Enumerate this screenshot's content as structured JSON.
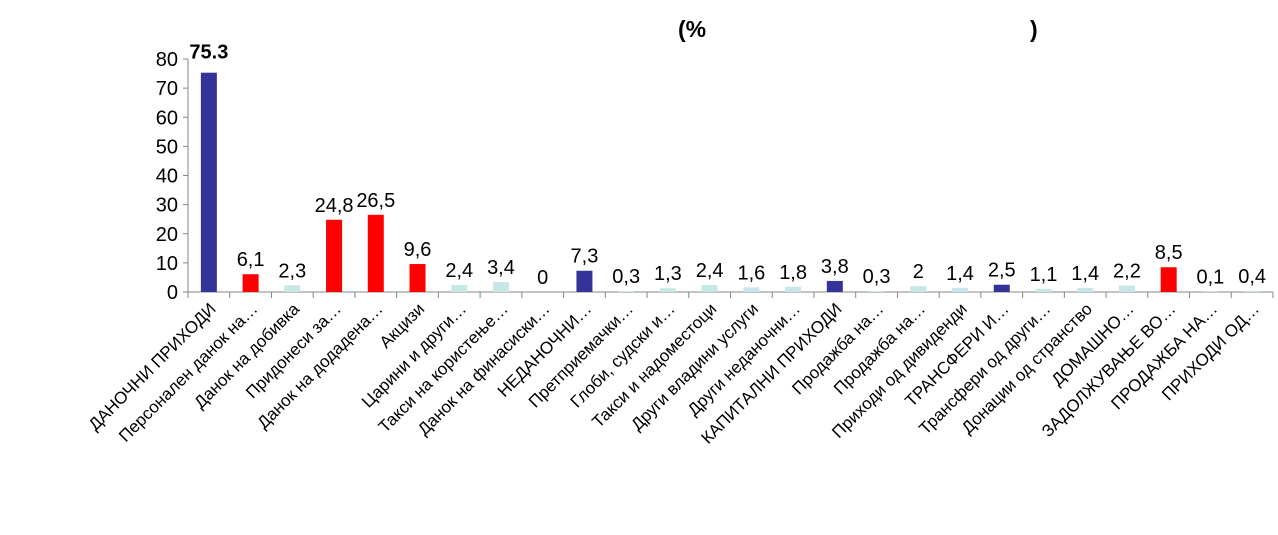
{
  "chart_data": {
    "type": "bar",
    "title_parts": [
      "(%",
      ")"
    ],
    "xlabel": "",
    "ylabel": "",
    "ylim": [
      0,
      80
    ],
    "yticks": [
      "0",
      "10",
      "20",
      "30",
      "40",
      "50",
      "60",
      "70",
      "80"
    ],
    "categories": [
      "ДАНОЧНИ ПРИХОДИ",
      "Персонален данок на…",
      "Данок на добивка",
      "Придонеси за…",
      "Данок на додадена…",
      "Акцизи",
      "Царини и други…",
      "Такси на користење…",
      "Данок на финасиски…",
      "НЕДАНОЧНИ…",
      "Претприемачки…",
      "Глоби, судски и…",
      "Такси и надоместоци",
      "Други владини услуги",
      "Други неданочни…",
      "КАПИТАЛНИ ПРИХОДИ",
      "Продажба на…",
      "Продажба на…",
      "Приходи од дивиденди",
      "ТРАНСФЕРИ И…",
      "Трансфери од други…",
      "Донации од странство",
      "ДОМАШНО…",
      "ЗАДОЛЖУВАЊЕ ВО…",
      "ПРОДАЖБА НА…",
      "ПРИХОДИ ОД…"
    ],
    "values": [
      75.3,
      6.1,
      2.3,
      24.8,
      26.5,
      9.6,
      2.4,
      3.4,
      0,
      7.3,
      0.3,
      1.3,
      2.4,
      1.6,
      1.8,
      3.8,
      0.3,
      2,
      1.4,
      2.5,
      1.1,
      1.4,
      2.2,
      8.5,
      0.1,
      0.4
    ],
    "value_labels": [
      "75.3",
      "6,1",
      "2,3",
      "24,8",
      "26,5",
      "9,6",
      "2,4",
      "3,4",
      "0",
      "7,3",
      "0,3",
      "1,3",
      "2,4",
      "1,6",
      "1,8",
      "3,8",
      "0,3",
      "2",
      "1,4",
      "2,5",
      "1,1",
      "1,4",
      "2,2",
      "8,5",
      "0,1",
      "0,4"
    ],
    "bar_colors": [
      "#333399",
      "#ff0000",
      "#c6e6e8",
      "#ff0000",
      "#ff0000",
      "#ff0000",
      "#c6e6e8",
      "#c6e6e8",
      "#c6e6e8",
      "#333399",
      "#c6e6e8",
      "#c6e6e8",
      "#c6e6e8",
      "#c6e6e8",
      "#c6e6e8",
      "#333399",
      "#c6e6e8",
      "#c6e6e8",
      "#c6e6e8",
      "#333399",
      "#c6e6e8",
      "#c6e6e8",
      "#c6e6e8",
      "#ff0000",
      "#c6e6e8",
      "#c6e6e8"
    ],
    "grid": false,
    "legend": "none"
  }
}
